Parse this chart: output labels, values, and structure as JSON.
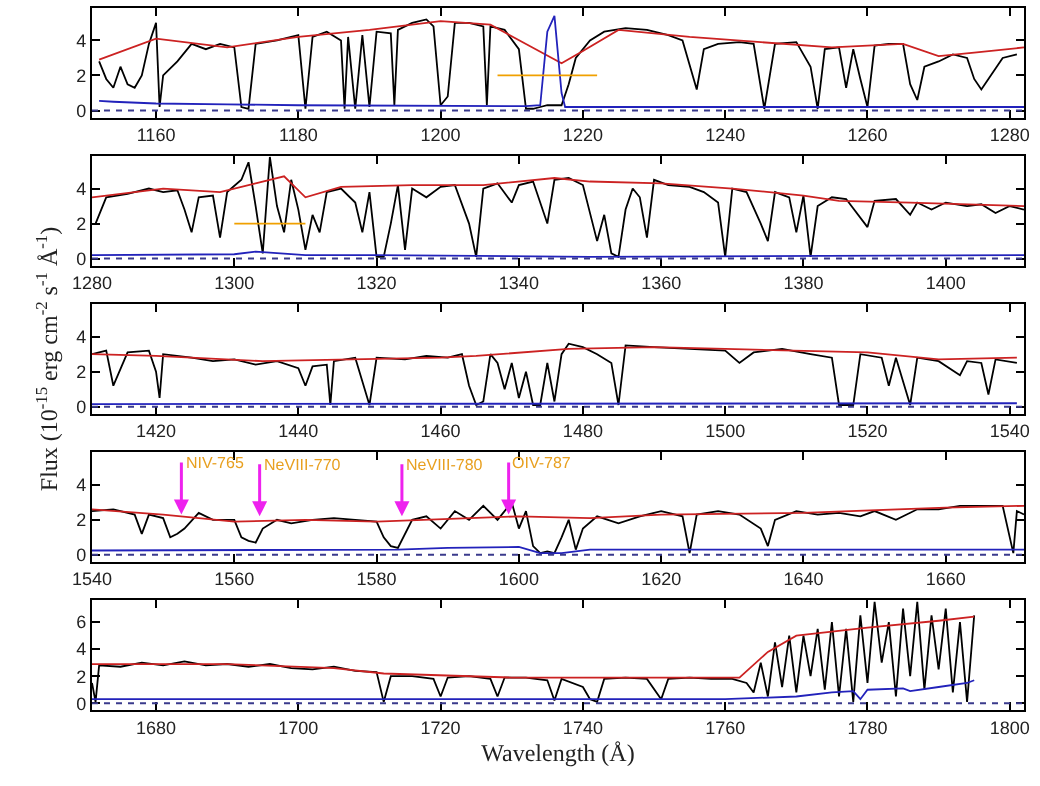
{
  "chart_data": [
    {
      "type": "line",
      "xlim": [
        1151,
        1282
      ],
      "ylim": [
        -0.4,
        5.85
      ],
      "xticks": [
        1160,
        1180,
        1200,
        1220,
        1240,
        1260,
        1280
      ],
      "yticks": [
        0,
        2,
        4
      ],
      "marker": "none",
      "ref_lines": [
        {
          "axis": "y",
          "value": 0,
          "color": "#3a3a8c",
          "line_style": "dotted"
        }
      ],
      "series": [
        {
          "color": "#000000",
          "x": [
            1152,
            1153,
            1154,
            1155,
            1156,
            1157,
            1158,
            1159,
            1160,
            1160.5,
            1161,
            1163,
            1165,
            1167,
            1169,
            1171,
            1172,
            1173,
            1174,
            1177,
            1180,
            1181,
            1182,
            1184,
            1186,
            1186.5,
            1187,
            1188,
            1189,
            1190,
            1191,
            1193,
            1193.5,
            1194,
            1196,
            1198,
            1199,
            1200,
            1201,
            1202,
            1204,
            1206,
            1206.5,
            1207,
            1209,
            1211,
            1212,
            1213,
            1214,
            1215,
            1217,
            1218,
            1219,
            1221,
            1223,
            1226,
            1229,
            1232,
            1234,
            1236,
            1237,
            1239,
            1242,
            1244,
            1245.5,
            1247,
            1250,
            1252,
            1253,
            1254,
            1256,
            1257,
            1258,
            1259,
            1260,
            1261,
            1263,
            1265,
            1266,
            1267,
            1268,
            1270,
            1272,
            1274,
            1275,
            1276,
            1277,
            1279,
            1281
          ],
          "values": [
            2.8,
            1.8,
            1.3,
            2.5,
            1.5,
            1.3,
            2.0,
            3.8,
            5.0,
            0.2,
            2.0,
            2.8,
            3.8,
            3.5,
            3.8,
            3.6,
            0.2,
            0.1,
            3.8,
            4.0,
            4.3,
            0.1,
            4.2,
            4.5,
            4.0,
            0.1,
            4.2,
            0.1,
            4.3,
            0.2,
            4.5,
            4.4,
            0.3,
            4.6,
            5.0,
            5.2,
            4.8,
            0.3,
            0.8,
            5.0,
            5.0,
            4.8,
            0.3,
            4.8,
            4.6,
            3.5,
            0.1,
            0.1,
            0.2,
            0.3,
            0.3,
            1.5,
            3.0,
            4.0,
            4.5,
            4.7,
            4.6,
            4.3,
            4.0,
            1.2,
            3.5,
            3.8,
            3.9,
            3.8,
            0.1,
            3.8,
            3.9,
            2.5,
            0.1,
            3.5,
            3.6,
            1.3,
            3.5,
            1.8,
            0.2,
            3.7,
            3.8,
            3.8,
            1.5,
            0.6,
            2.5,
            2.8,
            3.2,
            3.0,
            1.8,
            1.2,
            1.8,
            3.0,
            3.2
          ]
        },
        {
          "color": "#cc2222",
          "x": [
            1152,
            1160,
            1170,
            1180,
            1190,
            1200,
            1207,
            1212,
            1217,
            1220,
            1225,
            1235,
            1245,
            1255,
            1265,
            1270,
            1275,
            1282
          ],
          "values": [
            2.9,
            4.1,
            3.6,
            4.2,
            4.6,
            5.1,
            4.9,
            3.8,
            2.7,
            3.4,
            4.6,
            4.2,
            3.9,
            3.6,
            3.8,
            3.1,
            3.3,
            3.6
          ]
        },
        {
          "color": "#2222bb",
          "x": [
            1152,
            1154,
            1160,
            1170,
            1180,
            1212,
            1214,
            1215,
            1216,
            1217,
            1217.5,
            1240,
            1282
          ],
          "values": [
            0.55,
            0.5,
            0.4,
            0.35,
            0.3,
            0.25,
            0.3,
            4.5,
            5.4,
            1.0,
            0.2,
            0.2,
            0.2
          ]
        },
        {
          "color": "#f0a000",
          "x": [
            1208,
            1222
          ],
          "values": [
            2,
            2
          ]
        }
      ]
    },
    {
      "type": "line",
      "xlim": [
        1280,
        1411
      ],
      "ylim": [
        -0.4,
        5.85
      ],
      "xticks": [
        1280,
        1300,
        1320,
        1340,
        1360,
        1380,
        1400
      ],
      "yticks": [
        0,
        2,
        4
      ],
      "marker": "none",
      "ref_lines": [
        {
          "axis": "y",
          "value": 0,
          "color": "#3a3a8c",
          "line_style": "dotted"
        }
      ],
      "series": [
        {
          "color": "#000000",
          "x": [
            1280.5,
            1282,
            1285,
            1288,
            1290,
            1292,
            1293,
            1294,
            1295,
            1297,
            1298,
            1299,
            1301,
            1302,
            1303,
            1304,
            1305,
            1306,
            1307,
            1308,
            1309,
            1310,
            1311,
            1312,
            1313,
            1315,
            1317,
            1318,
            1319,
            1320,
            1321,
            1322,
            1323,
            1324,
            1325,
            1327,
            1329,
            1331,
            1333,
            1334,
            1335,
            1337,
            1339,
            1340,
            1342,
            1344,
            1345,
            1347,
            1349,
            1351,
            1352,
            1353,
            1354,
            1355,
            1356,
            1357,
            1358,
            1359,
            1361,
            1364,
            1366,
            1368,
            1369,
            1370,
            1372,
            1374,
            1375,
            1376,
            1378,
            1379,
            1380,
            1381,
            1382,
            1384,
            1386,
            1389,
            1390,
            1393,
            1395,
            1396,
            1398,
            1400,
            1403,
            1405,
            1407,
            1409,
            1411
          ],
          "values": [
            2.0,
            3.5,
            3.7,
            4.0,
            3.8,
            3.9,
            2.8,
            1.5,
            3.5,
            3.6,
            1.2,
            3.8,
            4.5,
            5.5,
            3.0,
            0.3,
            5.8,
            3.0,
            1.5,
            4.5,
            2.8,
            0.5,
            2.5,
            1.5,
            3.8,
            4.0,
            3.2,
            1.5,
            3.8,
            0.1,
            0.1,
            2.0,
            4.2,
            0.5,
            4.0,
            3.5,
            4.1,
            4.2,
            2.0,
            0.1,
            4.0,
            4.3,
            3.2,
            4.2,
            4.4,
            2.0,
            4.5,
            4.6,
            4.2,
            1.0,
            2.5,
            0.3,
            0.1,
            2.8,
            4.0,
            3.5,
            1.2,
            4.5,
            4.2,
            4.1,
            3.8,
            3.2,
            0.1,
            4.0,
            3.8,
            2.0,
            1.0,
            3.8,
            3.5,
            1.5,
            3.6,
            0.1,
            3.0,
            3.5,
            3.4,
            1.8,
            3.3,
            3.4,
            2.5,
            3.2,
            2.8,
            3.2,
            3.0,
            3.1,
            2.6,
            3.0,
            2.8
          ]
        },
        {
          "color": "#cc2222",
          "x": [
            1280,
            1290,
            1298,
            1303,
            1307,
            1310,
            1315,
            1325,
            1335,
            1345,
            1350,
            1360,
            1370,
            1380,
            1385,
            1395,
            1411
          ],
          "values": [
            3.5,
            4.0,
            3.8,
            4.3,
            4.7,
            3.5,
            4.1,
            4.2,
            4.2,
            4.6,
            4.4,
            4.3,
            4.0,
            3.6,
            3.3,
            3.2,
            3.0
          ]
        },
        {
          "color": "#2222bb",
          "x": [
            1280,
            1300,
            1303,
            1310,
            1320,
            1350,
            1411
          ],
          "values": [
            0.2,
            0.25,
            0.4,
            0.2,
            0.2,
            0.1,
            0.2
          ]
        },
        {
          "color": "#f0a000",
          "x": [
            1300,
            1310
          ],
          "values": [
            2,
            2
          ]
        }
      ]
    },
    {
      "type": "line",
      "xlim": [
        1411,
        1542
      ],
      "ylim": [
        -0.4,
        5.85
      ],
      "xticks": [
        1420,
        1440,
        1460,
        1480,
        1500,
        1520,
        1540
      ],
      "yticks": [
        0,
        2,
        4
      ],
      "marker": "none",
      "ylabel": "Flux (10$^{-15}$ erg cm$^{-2}$ s$^{-1}$ Å$^{-1}$)",
      "ref_lines": [
        {
          "axis": "y",
          "value": 0,
          "color": "#3a3a8c",
          "line_style": "dotted"
        }
      ],
      "series": [
        {
          "color": "#000000",
          "x": [
            1411,
            1413,
            1414,
            1416,
            1419,
            1420,
            1420.5,
            1421,
            1425,
            1428,
            1431,
            1434,
            1437,
            1440,
            1441,
            1442,
            1444,
            1444.5,
            1445,
            1448,
            1450,
            1451,
            1455,
            1458,
            1461,
            1463,
            1464,
            1465,
            1466,
            1467,
            1468,
            1469,
            1470,
            1471,
            1472,
            1473,
            1474,
            1475,
            1476,
            1477,
            1478,
            1480,
            1482,
            1484,
            1485,
            1486,
            1490,
            1495,
            1500,
            1502,
            1504,
            1508,
            1512,
            1515,
            1516,
            1518,
            1519,
            1522,
            1523,
            1524,
            1526,
            1527,
            1530,
            1533,
            1534,
            1536,
            1537,
            1538,
            1541
          ],
          "values": [
            3.0,
            3.2,
            1.2,
            3.1,
            3.2,
            2.0,
            0.5,
            3.0,
            2.8,
            2.6,
            2.7,
            2.4,
            2.6,
            2.2,
            1.2,
            2.3,
            2.4,
            0.1,
            2.6,
            2.8,
            0.1,
            2.8,
            2.7,
            2.9,
            2.8,
            3.0,
            1.2,
            0.1,
            0.3,
            3.0,
            2.5,
            1.0,
            2.5,
            0.5,
            2.0,
            0.1,
            0.1,
            2.5,
            0.3,
            3.0,
            3.6,
            3.4,
            3.0,
            2.5,
            0.1,
            3.5,
            3.4,
            3.3,
            3.2,
            2.5,
            3.1,
            3.3,
            3.0,
            2.8,
            0.1,
            0.1,
            3.0,
            2.8,
            1.2,
            2.8,
            0.1,
            2.8,
            2.6,
            1.8,
            2.6,
            2.5,
            0.7,
            2.7,
            2.5
          ]
        },
        {
          "color": "#cc2222",
          "x": [
            1411,
            1420,
            1435,
            1460,
            1465,
            1478,
            1490,
            1500,
            1520,
            1530,
            1541
          ],
          "values": [
            3.0,
            2.9,
            2.6,
            2.8,
            2.9,
            3.3,
            3.4,
            3.3,
            3.1,
            2.7,
            2.8
          ]
        },
        {
          "color": "#2222bb",
          "x": [
            1411,
            1541
          ],
          "values": [
            0.15,
            0.2
          ]
        }
      ]
    },
    {
      "type": "line",
      "xlim": [
        1540,
        1671
      ],
      "ylim": [
        -0.4,
        5.85
      ],
      "xticks": [
        1540,
        1560,
        1580,
        1600,
        1620,
        1640,
        1660
      ],
      "yticks": [
        0,
        2,
        4
      ],
      "marker": "none",
      "annotations": [
        {
          "text": "NIV-765",
          "x": 1552,
          "y": 2.3
        },
        {
          "text": "NeVIII-770",
          "x": 1563,
          "y": 2.2
        },
        {
          "text": "NeVIII-780",
          "x": 1583,
          "y": 2.2
        },
        {
          "text": "OIV-787",
          "x": 1598,
          "y": 2.3
        }
      ],
      "ref_lines": [
        {
          "axis": "y",
          "value": 0,
          "color": "#3a3a8c",
          "line_style": "dotted"
        }
      ],
      "series": [
        {
          "color": "#000000",
          "x": [
            1540,
            1543,
            1546,
            1547,
            1548,
            1550,
            1551,
            1552,
            1553,
            1555,
            1557,
            1560,
            1561,
            1562,
            1563,
            1564,
            1566,
            1568,
            1571,
            1574,
            1577,
            1580,
            1581,
            1582,
            1583,
            1585,
            1587,
            1589,
            1591,
            1593,
            1595,
            1597,
            1599,
            1600,
            1601,
            1602,
            1603,
            1604,
            1605,
            1606,
            1607,
            1608,
            1609,
            1611,
            1614,
            1617,
            1620,
            1623,
            1624,
            1625,
            1628,
            1631,
            1634,
            1635,
            1636,
            1639,
            1642,
            1645,
            1648,
            1650,
            1653,
            1656,
            1659,
            1662,
            1665,
            1668,
            1669.5,
            1670,
            1671
          ],
          "values": [
            2.5,
            2.6,
            2.3,
            1.2,
            2.3,
            2.1,
            1.0,
            1.2,
            1.5,
            2.4,
            2.0,
            2.0,
            1.0,
            0.8,
            0.7,
            1.5,
            2.0,
            1.8,
            2.0,
            2.1,
            2.0,
            1.9,
            1.0,
            0.5,
            0.4,
            2.0,
            2.2,
            1.5,
            2.5,
            2.0,
            2.8,
            2.0,
            3.0,
            1.5,
            2.5,
            0.5,
            0.1,
            0.2,
            0.1,
            1.0,
            2.0,
            0.3,
            1.5,
            2.2,
            1.8,
            2.2,
            2.5,
            2.2,
            0.1,
            2.3,
            2.5,
            2.3,
            1.5,
            0.5,
            2.0,
            2.5,
            2.3,
            2.4,
            2.2,
            2.5,
            2.0,
            2.6,
            2.6,
            2.8,
            2.8,
            2.8,
            0.1,
            2.5,
            2.3
          ]
        },
        {
          "color": "#cc2222",
          "x": [
            1540,
            1550,
            1560,
            1570,
            1580,
            1600,
            1610,
            1620,
            1640,
            1660,
            1671
          ],
          "values": [
            2.6,
            2.3,
            1.9,
            2.0,
            1.9,
            2.2,
            2.1,
            2.3,
            2.4,
            2.7,
            2.8
          ]
        },
        {
          "color": "#2222bb",
          "x": [
            1540,
            1583,
            1590,
            1600,
            1603,
            1606,
            1610,
            1671
          ],
          "values": [
            0.25,
            0.3,
            0.4,
            0.45,
            0.1,
            0.1,
            0.3,
            0.3
          ]
        }
      ]
    },
    {
      "type": "line",
      "xlim": [
        1671,
        1802
      ],
      "ylim": [
        -0.5,
        7.6
      ],
      "xticks": [
        1680,
        1700,
        1720,
        1740,
        1760,
        1780,
        1800
      ],
      "yticks": [
        0,
        2,
        4,
        6
      ],
      "marker": "none",
      "xlabel": "Wavelength (Å)",
      "ref_lines": [
        {
          "axis": "y",
          "value": 0,
          "color": "#3a3a8c",
          "line_style": "dotted"
        }
      ],
      "series": [
        {
          "color": "#000000",
          "x": [
            1671,
            1671.5,
            1672,
            1675,
            1678,
            1681,
            1684,
            1687,
            1690,
            1693,
            1696,
            1699,
            1702,
            1705,
            1708,
            1711,
            1712,
            1713,
            1716,
            1719,
            1720,
            1721,
            1724,
            1727,
            1728,
            1729,
            1732,
            1735,
            1736,
            1737,
            1740,
            1741,
            1742,
            1743,
            1746,
            1749,
            1751,
            1752,
            1755,
            1758,
            1761,
            1763,
            1764,
            1765,
            1766,
            1767,
            1768,
            1769,
            1770,
            1771,
            1772,
            1773,
            1774,
            1775,
            1776,
            1777,
            1778,
            1779,
            1780,
            1781,
            1782,
            1783,
            1784,
            1785,
            1786,
            1787,
            1788,
            1789,
            1790,
            1791,
            1792,
            1793,
            1794,
            1795
          ],
          "values": [
            1.5,
            0.1,
            2.8,
            2.7,
            3.0,
            2.8,
            3.1,
            2.8,
            2.9,
            2.7,
            2.9,
            2.6,
            2.5,
            2.7,
            2.4,
            2.3,
            0.1,
            2.0,
            2.0,
            1.8,
            0.5,
            1.9,
            2.0,
            1.8,
            0.5,
            1.9,
            1.9,
            1.7,
            0.2,
            1.8,
            1.2,
            0.3,
            0.1,
            1.8,
            1.9,
            1.8,
            0.3,
            1.8,
            1.9,
            1.8,
            1.8,
            1.5,
            0.8,
            3.0,
            0.5,
            4.5,
            1.2,
            5.0,
            0.8,
            5.0,
            2.0,
            5.5,
            1.0,
            6.0,
            0.5,
            5.5,
            0.1,
            6.5,
            1.5,
            7.5,
            3.0,
            6.0,
            0.5,
            7.0,
            2.0,
            7.5,
            1.0,
            6.5,
            2.5,
            7.0,
            0.8,
            6.0,
            0.1,
            6.5
          ]
        },
        {
          "color": "#cc2222",
          "x": [
            1671,
            1690,
            1705,
            1712,
            1730,
            1745,
            1762,
            1766,
            1770,
            1780,
            1790,
            1795
          ],
          "values": [
            2.9,
            2.9,
            2.6,
            2.2,
            1.9,
            1.9,
            1.9,
            3.8,
            5.0,
            5.6,
            6.1,
            6.4
          ]
        },
        {
          "color": "#2222bb",
          "x": [
            1671,
            1760,
            1770,
            1775,
            1778,
            1779,
            1780,
            1785,
            1786,
            1790,
            1794,
            1795
          ],
          "values": [
            0.3,
            0.3,
            0.5,
            0.8,
            0.9,
            0.3,
            1.0,
            1.1,
            0.9,
            1.2,
            1.5,
            1.7
          ]
        }
      ]
    }
  ]
}
